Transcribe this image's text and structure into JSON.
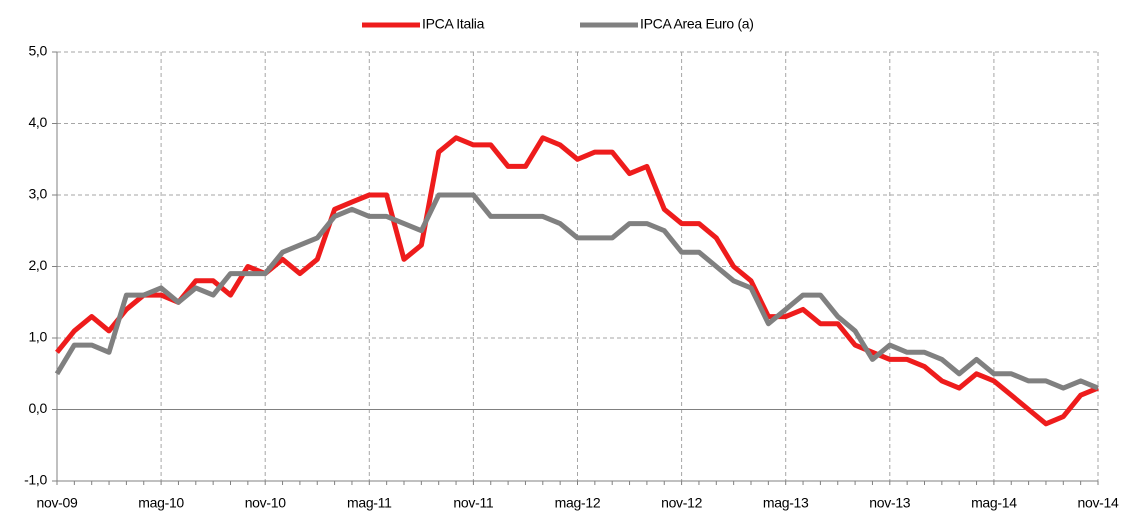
{
  "chart_data": {
    "type": "line",
    "categories": [
      "nov-09",
      null,
      null,
      null,
      null,
      null,
      "mag-10",
      null,
      null,
      null,
      null,
      null,
      "nov-10",
      null,
      null,
      null,
      null,
      null,
      "mag-11",
      null,
      null,
      null,
      null,
      null,
      "nov-11",
      null,
      null,
      null,
      null,
      null,
      "mag-12",
      null,
      null,
      null,
      null,
      null,
      "nov-12",
      null,
      null,
      null,
      null,
      null,
      "mag-13",
      null,
      null,
      null,
      null,
      null,
      "nov-13",
      null,
      null,
      null,
      null,
      null,
      "mag-14",
      null,
      null,
      null,
      null,
      null,
      "nov-14"
    ],
    "series": [
      {
        "name": "IPCA Italia",
        "color": "#ee1c1c",
        "values": [
          0.8,
          1.1,
          1.3,
          1.1,
          1.4,
          1.6,
          1.6,
          1.5,
          1.8,
          1.8,
          1.6,
          2.0,
          1.9,
          2.1,
          1.9,
          2.1,
          2.8,
          2.9,
          3.0,
          3.0,
          2.1,
          2.3,
          3.6,
          3.8,
          3.7,
          3.7,
          3.4,
          3.4,
          3.8,
          3.7,
          3.5,
          3.6,
          3.6,
          3.3,
          3.4,
          2.8,
          2.6,
          2.6,
          2.4,
          2.0,
          1.8,
          1.3,
          1.3,
          1.4,
          1.2,
          1.2,
          0.9,
          0.8,
          0.7,
          0.7,
          0.6,
          0.4,
          0.3,
          0.5,
          0.4,
          0.2,
          0.0,
          -0.2,
          -0.1,
          0.2,
          0.3
        ]
      },
      {
        "name": "IPCA Area Euro (a)",
        "color": "#808080",
        "values": [
          0.5,
          0.9,
          0.9,
          0.8,
          1.6,
          1.6,
          1.7,
          1.5,
          1.7,
          1.6,
          1.9,
          1.9,
          1.9,
          2.2,
          2.3,
          2.4,
          2.7,
          2.8,
          2.7,
          2.7,
          2.6,
          2.5,
          3.0,
          3.0,
          3.0,
          2.7,
          2.7,
          2.7,
          2.7,
          2.6,
          2.4,
          2.4,
          2.4,
          2.6,
          2.6,
          2.5,
          2.2,
          2.2,
          2.0,
          1.8,
          1.7,
          1.2,
          1.4,
          1.6,
          1.6,
          1.3,
          1.1,
          0.7,
          0.9,
          0.8,
          0.8,
          0.7,
          0.5,
          0.7,
          0.5,
          0.5,
          0.4,
          0.4,
          0.3,
          0.4,
          0.3
        ]
      }
    ],
    "ylim": [
      -1,
      5
    ],
    "yticks": [
      {
        "value": -1,
        "label": "-1,0"
      },
      {
        "value": 0,
        "label": "0,0"
      },
      {
        "value": 1,
        "label": "1,0"
      },
      {
        "value": 2,
        "label": "2,0"
      },
      {
        "value": 3,
        "label": "3,0"
      },
      {
        "value": 4,
        "label": "4,0"
      },
      {
        "value": 5,
        "label": "5,0"
      }
    ],
    "grid": true
  }
}
